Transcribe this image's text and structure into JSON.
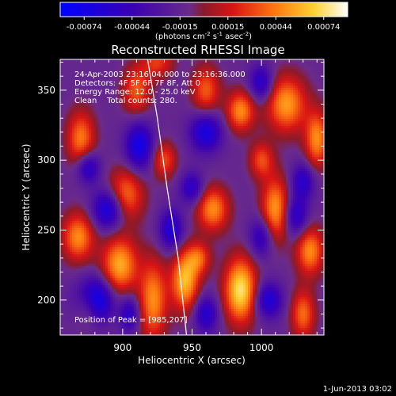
{
  "chart_data": {
    "type": "heatmap",
    "title": "Reconstructed RHESSI Image",
    "xlabel": "Heliocentric X (arcsec)",
    "ylabel": "Heliocentric Y (arcsec)",
    "xlim": [
      855,
      1045
    ],
    "ylim": [
      175,
      372
    ],
    "x_ticks": [
      900,
      950,
      1000
    ],
    "y_ticks": [
      200,
      250,
      300,
      350
    ],
    "colorbar": {
      "ticks": [
        "-0.00074",
        "-0.00044",
        "-0.00015",
        "0.00015",
        "0.00044",
        "0.00074"
      ],
      "range": [
        -0.00074,
        0.00074
      ],
      "units_prefix": "(photons cm",
      "units_exp1": "-2",
      "units_mid": " s",
      "units_exp2": "-1",
      "units_mid2": " asec",
      "units_exp3": "-2",
      "units_suffix": ")"
    },
    "annotations": {
      "time_range": "24-Apr-2003 23:16:04.000 to 23:16:36.000",
      "detectors": "Detectors: 4F 5F 6F 7F 8F, Att 0",
      "energy": "Energy Range: 12.0 - 25.0 keV",
      "clean": "Clean    Total counts: 280.",
      "peak": "Position of Peak = [985,207]"
    },
    "peak_position": [
      985,
      207
    ],
    "limb_curve": [
      [
        918,
        372
      ],
      [
        925,
        330
      ],
      [
        932,
        280
      ],
      [
        940,
        230
      ],
      [
        946,
        175
      ]
    ],
    "blobs": [
      {
        "x": 985,
        "y": 207,
        "sx": 8,
        "sy": 16,
        "v": 1.0
      },
      {
        "x": 945,
        "y": 214,
        "sx": 7,
        "sy": 15,
        "v": 0.85
      },
      {
        "x": 898,
        "y": 225,
        "sx": 9,
        "sy": 14,
        "v": 0.8
      },
      {
        "x": 868,
        "y": 245,
        "sx": 8,
        "sy": 12,
        "v": 0.7
      },
      {
        "x": 922,
        "y": 200,
        "sx": 7,
        "sy": 20,
        "v": 0.7
      },
      {
        "x": 902,
        "y": 275,
        "sx": 9,
        "sy": 13,
        "v": 0.65
      },
      {
        "x": 1010,
        "y": 265,
        "sx": 7,
        "sy": 16,
        "v": 0.75
      },
      {
        "x": 1035,
        "y": 235,
        "sx": 7,
        "sy": 12,
        "v": 0.7
      },
      {
        "x": 965,
        "y": 265,
        "sx": 8,
        "sy": 11,
        "v": 0.7
      },
      {
        "x": 1018,
        "y": 340,
        "sx": 10,
        "sy": 14,
        "v": 0.75
      },
      {
        "x": 985,
        "y": 335,
        "sx": 7,
        "sy": 10,
        "v": 0.7
      },
      {
        "x": 960,
        "y": 350,
        "sx": 7,
        "sy": 12,
        "v": 0.55
      },
      {
        "x": 910,
        "y": 350,
        "sx": 7,
        "sy": 12,
        "v": 0.55
      },
      {
        "x": 870,
        "y": 315,
        "sx": 7,
        "sy": 14,
        "v": 0.65
      },
      {
        "x": 1040,
        "y": 315,
        "sx": 6,
        "sy": 14,
        "v": 0.7
      },
      {
        "x": 930,
        "y": 300,
        "sx": 6,
        "sy": 9,
        "v": 0.5
      },
      {
        "x": 1000,
        "y": 300,
        "sx": 6,
        "sy": 9,
        "v": 0.5
      },
      {
        "x": 875,
        "y": 195,
        "sx": 6,
        "sy": 10,
        "v": 0.45
      },
      {
        "x": 1030,
        "y": 190,
        "sx": 6,
        "sy": 12,
        "v": 0.6
      },
      {
        "x": 925,
        "y": 370,
        "sx": 8,
        "sy": 8,
        "v": 0.45
      },
      {
        "x": 955,
        "y": 230,
        "sx": 6,
        "sy": 8,
        "v": 0.5
      },
      {
        "x": 880,
        "y": 200,
        "sx": 9,
        "sy": 11,
        "v": -0.9
      },
      {
        "x": 890,
        "y": 265,
        "sx": 8,
        "sy": 10,
        "v": -0.75
      },
      {
        "x": 875,
        "y": 295,
        "sx": 6,
        "sy": 8,
        "v": -0.6
      },
      {
        "x": 960,
        "y": 320,
        "sx": 8,
        "sy": 10,
        "v": -0.65
      },
      {
        "x": 1005,
        "y": 200,
        "sx": 7,
        "sy": 9,
        "v": -0.6
      },
      {
        "x": 1000,
        "y": 245,
        "sx": 6,
        "sy": 10,
        "v": -0.5
      },
      {
        "x": 1025,
        "y": 260,
        "sx": 6,
        "sy": 10,
        "v": -0.55
      },
      {
        "x": 912,
        "y": 310,
        "sx": 7,
        "sy": 12,
        "v": -0.7
      },
      {
        "x": 935,
        "y": 250,
        "sx": 6,
        "sy": 10,
        "v": -0.6
      },
      {
        "x": 960,
        "y": 190,
        "sx": 6,
        "sy": 9,
        "v": -0.55
      },
      {
        "x": 1000,
        "y": 355,
        "sx": 6,
        "sy": 9,
        "v": -0.55
      },
      {
        "x": 1030,
        "y": 285,
        "sx": 6,
        "sy": 9,
        "v": -0.5
      },
      {
        "x": 905,
        "y": 190,
        "sx": 5,
        "sy": 9,
        "v": -0.5
      },
      {
        "x": 950,
        "y": 280,
        "sx": 6,
        "sy": 8,
        "v": -0.5
      }
    ]
  },
  "footer": {
    "date": "1-Jun-2013 03:02"
  }
}
